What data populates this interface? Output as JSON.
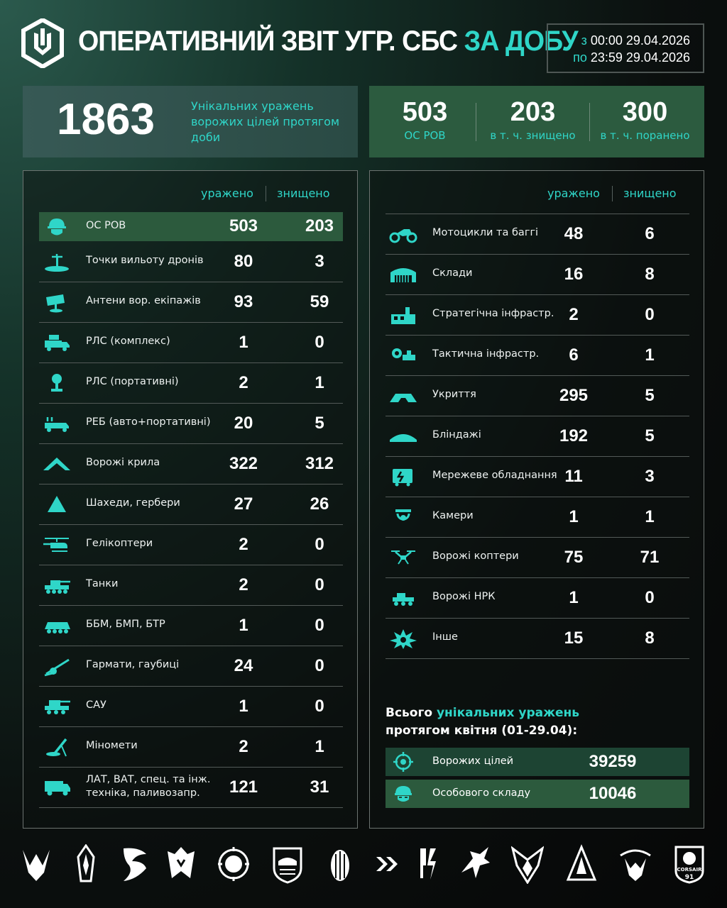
{
  "header": {
    "title_main": "ОПЕРАТИВНИЙ ЗВІТ УГР. СБС",
    "title_highlight": "ЗА ДОБУ",
    "period_from_label": "з",
    "period_from": "00:00 29.04.2026",
    "period_to_label": "по",
    "period_to": "23:59 29.04.2026"
  },
  "summary": {
    "unique_hits": "1863",
    "unique_hits_caption": "Унікальних уражень ворожих цілей протягом доби",
    "stats": [
      {
        "value": "503",
        "label": "ОС РОВ"
      },
      {
        "value": "203",
        "label": "в т. ч. знищено"
      },
      {
        "value": "300",
        "label": "в т. ч. поранено"
      }
    ]
  },
  "columns": {
    "hit": "уражено",
    "destroyed": "знищено"
  },
  "left_rows": [
    {
      "icon": "soldier-helmet-icon",
      "name": "ОС РОВ",
      "hit": "503",
      "destroyed": "203"
    },
    {
      "icon": "drone-launch-point-icon",
      "name": "Точки вильоту дронів",
      "hit": "80",
      "destroyed": "3"
    },
    {
      "icon": "antenna-icon",
      "name": "Антени вор. екіпажів",
      "hit": "93",
      "destroyed": "59"
    },
    {
      "icon": "radar-truck-icon",
      "name": "РЛС (комплекс)",
      "hit": "1",
      "destroyed": "0"
    },
    {
      "icon": "portable-radar-icon",
      "name": "РЛС (портативні)",
      "hit": "2",
      "destroyed": "1"
    },
    {
      "icon": "ew-vehicle-icon",
      "name": "РЕБ (авто+портативні)",
      "hit": "20",
      "destroyed": "5"
    },
    {
      "icon": "wing-drone-icon",
      "name": "Ворожі крила",
      "hit": "322",
      "destroyed": "312"
    },
    {
      "icon": "shahed-icon",
      "name": "Шахеди, гербери",
      "hit": "27",
      "destroyed": "26"
    },
    {
      "icon": "helicopter-icon",
      "name": "Гелікоптери",
      "hit": "2",
      "destroyed": "0"
    },
    {
      "icon": "tank-icon",
      "name": "Танки",
      "hit": "2",
      "destroyed": "0"
    },
    {
      "icon": "apc-icon",
      "name": "ББМ, БМП, БТР",
      "hit": "1",
      "destroyed": "0"
    },
    {
      "icon": "howitzer-icon",
      "name": "Гармати, гаубиці",
      "hit": "24",
      "destroyed": "0"
    },
    {
      "icon": "spg-icon",
      "name": "САУ",
      "hit": "1",
      "destroyed": "0"
    },
    {
      "icon": "mortar-icon",
      "name": "Міномети",
      "hit": "2",
      "destroyed": "1"
    },
    {
      "icon": "truck-icon",
      "name": "ЛАТ, ВАТ, спец. та інж.\nтехніка, паливозапр.",
      "hit": "121",
      "destroyed": "31"
    }
  ],
  "right_rows": [
    {
      "icon": "motorcycle-icon",
      "name": "Мотоцикли та баггі",
      "hit": "48",
      "destroyed": "6"
    },
    {
      "icon": "warehouse-icon",
      "name": "Склади",
      "hit": "16",
      "destroyed": "8"
    },
    {
      "icon": "factory-icon",
      "name": "Стратегічна інфрастр.",
      "hit": "2",
      "destroyed": "0"
    },
    {
      "icon": "gear-infrastructure-icon",
      "name": "Тактична інфрастр.",
      "hit": "6",
      "destroyed": "1"
    },
    {
      "icon": "shelter-icon",
      "name": "Укриття",
      "hit": "295",
      "destroyed": "5"
    },
    {
      "icon": "dugout-icon",
      "name": "Бліндажі",
      "hit": "192",
      "destroyed": "5"
    },
    {
      "icon": "network-equipment-icon",
      "name": "Мережеве обладнання",
      "hit": "11",
      "destroyed": "3"
    },
    {
      "icon": "camera-icon",
      "name": "Камери",
      "hit": "1",
      "destroyed": "1"
    },
    {
      "icon": "quadcopter-icon",
      "name": "Ворожі коптери",
      "hit": "75",
      "destroyed": "71"
    },
    {
      "icon": "ground-robot-icon",
      "name": "Ворожі НРК",
      "hit": "1",
      "destroyed": "0"
    },
    {
      "icon": "explosion-icon",
      "name": "Інше",
      "hit": "15",
      "destroyed": "8"
    }
  ],
  "totals": {
    "title_prefix": "Всього ",
    "title_highlight": "унікальних уражень",
    "title_suffix": "протягом квітня (01-29.04):",
    "rows": [
      {
        "icon": "target-icon",
        "name": "Ворожих цілей",
        "value": "39259"
      },
      {
        "icon": "soldier-helmet-icon",
        "name": "Особового складу",
        "value": "10046"
      }
    ]
  },
  "footer": {
    "units": [
      "unit-emblem-1",
      "unit-emblem-2",
      "unit-emblem-3",
      "unit-emblem-4",
      "unit-emblem-5",
      "unit-emblem-6",
      "unit-emblem-7",
      "unit-emblem-8",
      "unit-emblem-9",
      "unit-emblem-10",
      "unit-emblem-11",
      "unit-emblem-12",
      "unit-emblem-13",
      "unit-emblem-14"
    ],
    "corsair_text": "CORSAIR",
    "corsair_num": "91"
  },
  "colors": {
    "accent": "#2fd6c8",
    "highlight_green": "#2c5a3d",
    "summary_left": "#375955"
  }
}
